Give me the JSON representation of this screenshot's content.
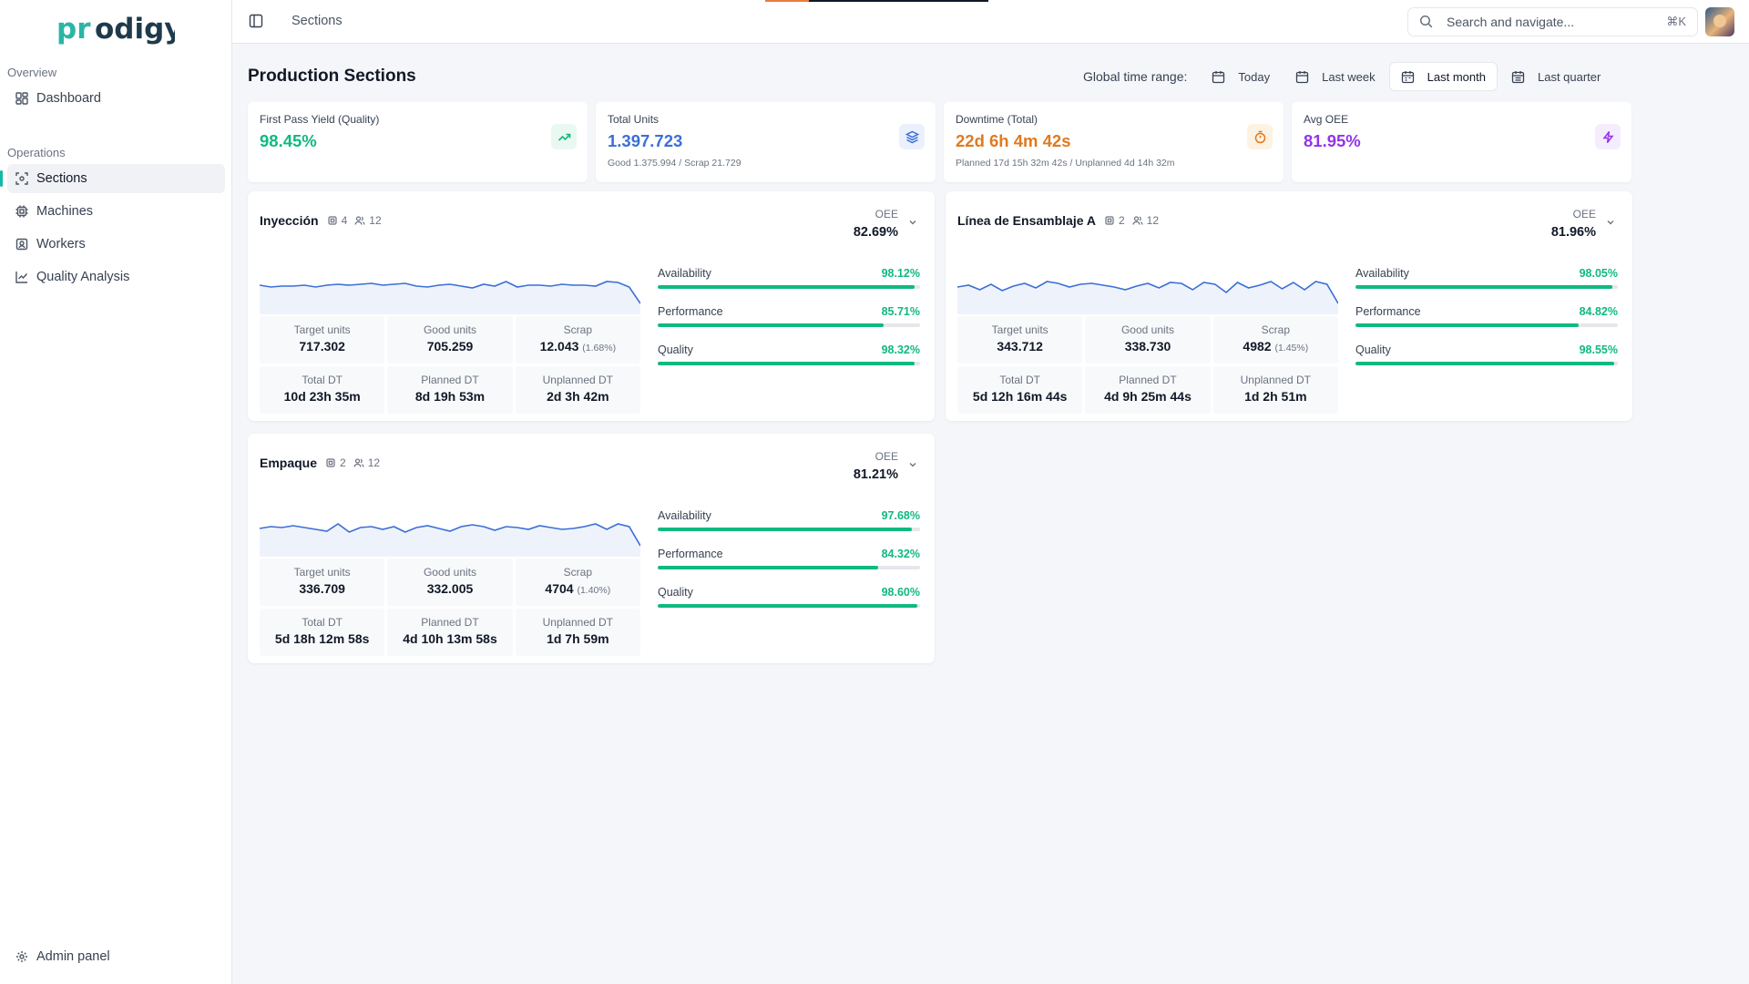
{
  "app": {
    "logo_text": "prodigy"
  },
  "sidebar": {
    "groups": [
      {
        "heading": "Overview",
        "items": [
          {
            "label": "Dashboard",
            "icon": "dashboard-icon"
          }
        ]
      },
      {
        "heading": "Operations",
        "items": [
          {
            "label": "Sections",
            "icon": "sections-icon",
            "active": true
          },
          {
            "label": "Machines",
            "icon": "cpu-icon"
          },
          {
            "label": "Workers",
            "icon": "id-badge-icon"
          },
          {
            "label": "Quality Analysis",
            "icon": "line-chart-icon"
          }
        ]
      }
    ],
    "footer": {
      "label": "Admin panel",
      "icon": "gear-icon"
    }
  },
  "topbar": {
    "breadcrumb": "Sections",
    "search": {
      "placeholder": "Search and navigate...",
      "shortcut": "⌘K"
    }
  },
  "page": {
    "title": "Production Sections",
    "time_range": {
      "label": "Global time range:",
      "options": [
        "Today",
        "Last week",
        "Last month",
        "Last quarter"
      ],
      "selected": "Last month"
    }
  },
  "kpis": [
    {
      "title": "First Pass Yield (Quality)",
      "value": "98.45%",
      "sub": "",
      "color": "#10b981",
      "icon": "trending-up-icon"
    },
    {
      "title": "Total Units",
      "value": "1.397.723",
      "sub": "Good 1.375.994 / Scrap 21.729",
      "color": "#3b6fd6",
      "icon": "layers-icon"
    },
    {
      "title": "Downtime (Total)",
      "value": "22d 6h 4m 42s",
      "sub": "Planned 17d 15h 32m 42s / Unplanned 4d 14h 32m",
      "color": "#e07a1f",
      "icon": "timer-icon"
    },
    {
      "title": "Avg OEE",
      "value": "81.95%",
      "sub": "",
      "color": "#9333ea",
      "icon": "zap-icon"
    }
  ],
  "sections": [
    {
      "name": "Inyección",
      "machines": "4",
      "workers": "12",
      "oee_label": "OEE",
      "oee": "82.69%",
      "stats": {
        "target_label": "Target units",
        "target": "717.302",
        "good_label": "Good units",
        "good": "705.259",
        "scrap_label": "Scrap",
        "scrap": "12.043",
        "scrap_pct": "(1.68%)",
        "total_dt_label": "Total DT",
        "total_dt": "10d 23h 35m",
        "planned_dt_label": "Planned DT",
        "planned_dt": "8d 19h 53m",
        "unplanned_dt_label": "Unplanned DT",
        "unplanned_dt": "2d 3h 42m"
      },
      "metrics": [
        {
          "name": "Availability",
          "value": "98.12%",
          "fill": 0.98
        },
        {
          "name": "Performance",
          "value": "85.71%",
          "fill": 0.86
        },
        {
          "name": "Quality",
          "value": "98.32%",
          "fill": 0.98
        }
      ],
      "sparkline": [
        28,
        30,
        29,
        29,
        28,
        30,
        28,
        27,
        28,
        27,
        26,
        28,
        27,
        26,
        29,
        30,
        28,
        27,
        29,
        31,
        27,
        29,
        24,
        30,
        28,
        28,
        29,
        27,
        28,
        28,
        29,
        24,
        25,
        30,
        48
      ]
    },
    {
      "name": "Línea de Ensamblaje A",
      "machines": "2",
      "workers": "12",
      "oee_label": "OEE",
      "oee": "81.96%",
      "stats": {
        "target_label": "Target units",
        "target": "343.712",
        "good_label": "Good units",
        "good": "338.730",
        "scrap_label": "Scrap",
        "scrap": "4982",
        "scrap_pct": "(1.45%)",
        "total_dt_label": "Total DT",
        "total_dt": "5d 12h 16m 44s",
        "planned_dt_label": "Planned DT",
        "planned_dt": "4d 9h 25m 44s",
        "unplanned_dt_label": "Unplanned DT",
        "unplanned_dt": "1d 2h 51m"
      },
      "metrics": [
        {
          "name": "Availability",
          "value": "98.05%",
          "fill": 0.98
        },
        {
          "name": "Performance",
          "value": "84.82%",
          "fill": 0.85
        },
        {
          "name": "Quality",
          "value": "98.55%",
          "fill": 0.985
        }
      ],
      "sparkline": [
        30,
        28,
        33,
        27,
        34,
        29,
        26,
        31,
        24,
        26,
        30,
        27,
        26,
        28,
        30,
        33,
        29,
        26,
        31,
        25,
        26,
        33,
        25,
        27,
        36,
        25,
        31,
        28,
        24,
        32,
        25,
        33,
        24,
        27,
        48
      ]
    },
    {
      "name": "Empaque",
      "machines": "2",
      "workers": "12",
      "oee_label": "OEE",
      "oee": "81.21%",
      "stats": {
        "target_label": "Target units",
        "target": "336.709",
        "good_label": "Good units",
        "good": "332.005",
        "scrap_label": "Scrap",
        "scrap": "4704",
        "scrap_pct": "(1.40%)",
        "total_dt_label": "Total DT",
        "total_dt": "5d 18h 12m 58s",
        "planned_dt_label": "Planned DT",
        "planned_dt": "4d 10h 13m 58s",
        "unplanned_dt_label": "Unplanned DT",
        "unplanned_dt": "1d 7h 59m"
      },
      "metrics": [
        {
          "name": "Availability",
          "value": "97.68%",
          "fill": 0.97
        },
        {
          "name": "Performance",
          "value": "84.32%",
          "fill": 0.84
        },
        {
          "name": "Quality",
          "value": "98.60%",
          "fill": 0.99
        }
      ],
      "sparkline": [
        29,
        27,
        28,
        26,
        28,
        30,
        32,
        24,
        33,
        28,
        27,
        30,
        27,
        33,
        28,
        26,
        29,
        32,
        27,
        25,
        27,
        31,
        27,
        28,
        30,
        26,
        28,
        30,
        29,
        27,
        24,
        30,
        24,
        27,
        48
      ]
    }
  ]
}
